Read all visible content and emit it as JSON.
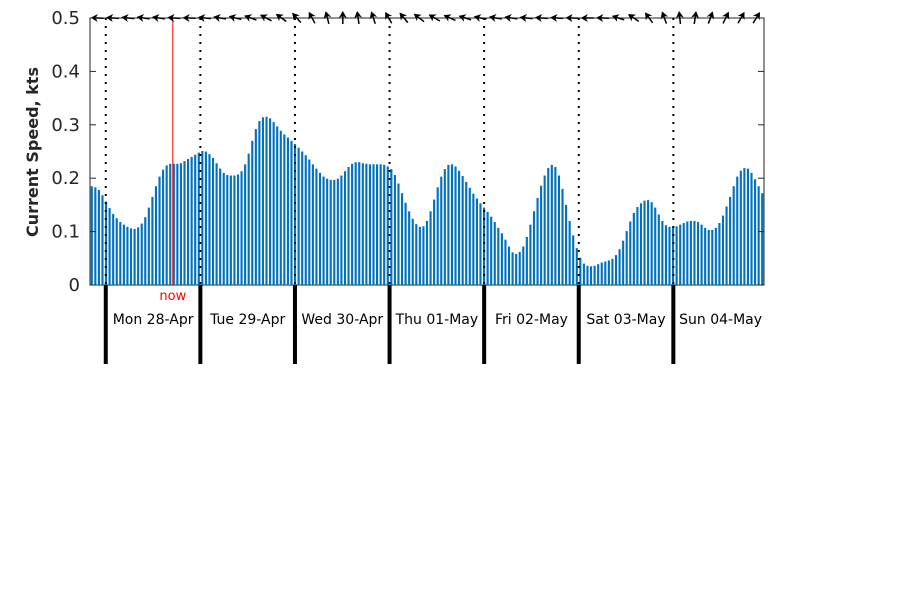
{
  "chart_data": {
    "type": "bar",
    "ylabel": "Current Speed, kts",
    "ylim": [
      0,
      0.5
    ],
    "yticks": [
      "0",
      "0.1",
      "0.2",
      "0.3",
      "0.4",
      "0.5"
    ],
    "y_ticks": [
      0,
      0.1,
      0.2,
      0.3,
      0.4,
      0.5
    ],
    "grid": false,
    "x_start": "2025-04-27 20:00",
    "x_end": "2025-05-04 23:00",
    "day_labels": [
      "Mon 28-Apr",
      "Tue 29-Apr",
      "Wed 30-Apr",
      "Thu 01-May",
      "Fri 02-May",
      "Sat 03-May",
      "Sun 04-May"
    ],
    "midnights": [
      "2025-04-28 00:00",
      "2025-04-29 00:00",
      "2025-04-30 00:00",
      "2025-05-01 00:00",
      "2025-05-02 00:00",
      "2025-05-03 00:00",
      "2025-05-04 00:00"
    ],
    "now_label": "now",
    "now_time": "2025-04-28 17:00",
    "now_color": "#ff0000",
    "bar_color": "#0072bd",
    "speeds": [
      0.185,
      0.183,
      0.178,
      0.168,
      0.156,
      0.144,
      0.133,
      0.125,
      0.118,
      0.113,
      0.109,
      0.106,
      0.105,
      0.108,
      0.115,
      0.127,
      0.145,
      0.165,
      0.185,
      0.203,
      0.216,
      0.224,
      0.227,
      0.227,
      0.227,
      0.228,
      0.232,
      0.236,
      0.24,
      0.244,
      0.248,
      0.251,
      0.25,
      0.245,
      0.238,
      0.228,
      0.218,
      0.21,
      0.206,
      0.205,
      0.205,
      0.207,
      0.213,
      0.226,
      0.246,
      0.27,
      0.292,
      0.307,
      0.314,
      0.315,
      0.312,
      0.305,
      0.297,
      0.289,
      0.282,
      0.276,
      0.27,
      0.264,
      0.257,
      0.25,
      0.243,
      0.235,
      0.226,
      0.218,
      0.21,
      0.203,
      0.199,
      0.197,
      0.197,
      0.199,
      0.205,
      0.213,
      0.221,
      0.227,
      0.23,
      0.23,
      0.228,
      0.227,
      0.226,
      0.226,
      0.226,
      0.226,
      0.225,
      0.222,
      0.217,
      0.206,
      0.19,
      0.172,
      0.154,
      0.138,
      0.124,
      0.114,
      0.109,
      0.11,
      0.12,
      0.138,
      0.16,
      0.183,
      0.203,
      0.217,
      0.225,
      0.226,
      0.222,
      0.214,
      0.204,
      0.193,
      0.182,
      0.171,
      0.162,
      0.153,
      0.145,
      0.137,
      0.128,
      0.118,
      0.107,
      0.097,
      0.085,
      0.072,
      0.061,
      0.058,
      0.062,
      0.072,
      0.09,
      0.113,
      0.138,
      0.163,
      0.186,
      0.205,
      0.219,
      0.225,
      0.221,
      0.205,
      0.18,
      0.15,
      0.12,
      0.093,
      0.069,
      0.051,
      0.04,
      0.036,
      0.035,
      0.036,
      0.039,
      0.042,
      0.044,
      0.046,
      0.049,
      0.056,
      0.067,
      0.083,
      0.101,
      0.119,
      0.135,
      0.146,
      0.153,
      0.158,
      0.159,
      0.155,
      0.145,
      0.132,
      0.12,
      0.112,
      0.109,
      0.109,
      0.11,
      0.113,
      0.116,
      0.119,
      0.12,
      0.12,
      0.118,
      0.113,
      0.107,
      0.103,
      0.103,
      0.107,
      0.116,
      0.13,
      0.147,
      0.165,
      0.185,
      0.203,
      0.214,
      0.219,
      0.218,
      0.21,
      0.198,
      0.185,
      0.172
    ],
    "direction_arrows": [
      178,
      176,
      174,
      172,
      172,
      176,
      178,
      174,
      170,
      166,
      160,
      152,
      144,
      132,
      118,
      104,
      90,
      98,
      108,
      120,
      130,
      142,
      150,
      156,
      162,
      168,
      170,
      172,
      174,
      176,
      176,
      178,
      180,
      178,
      162,
      146,
      126,
      110,
      96,
      82,
      70,
      64,
      60,
      58
    ]
  }
}
